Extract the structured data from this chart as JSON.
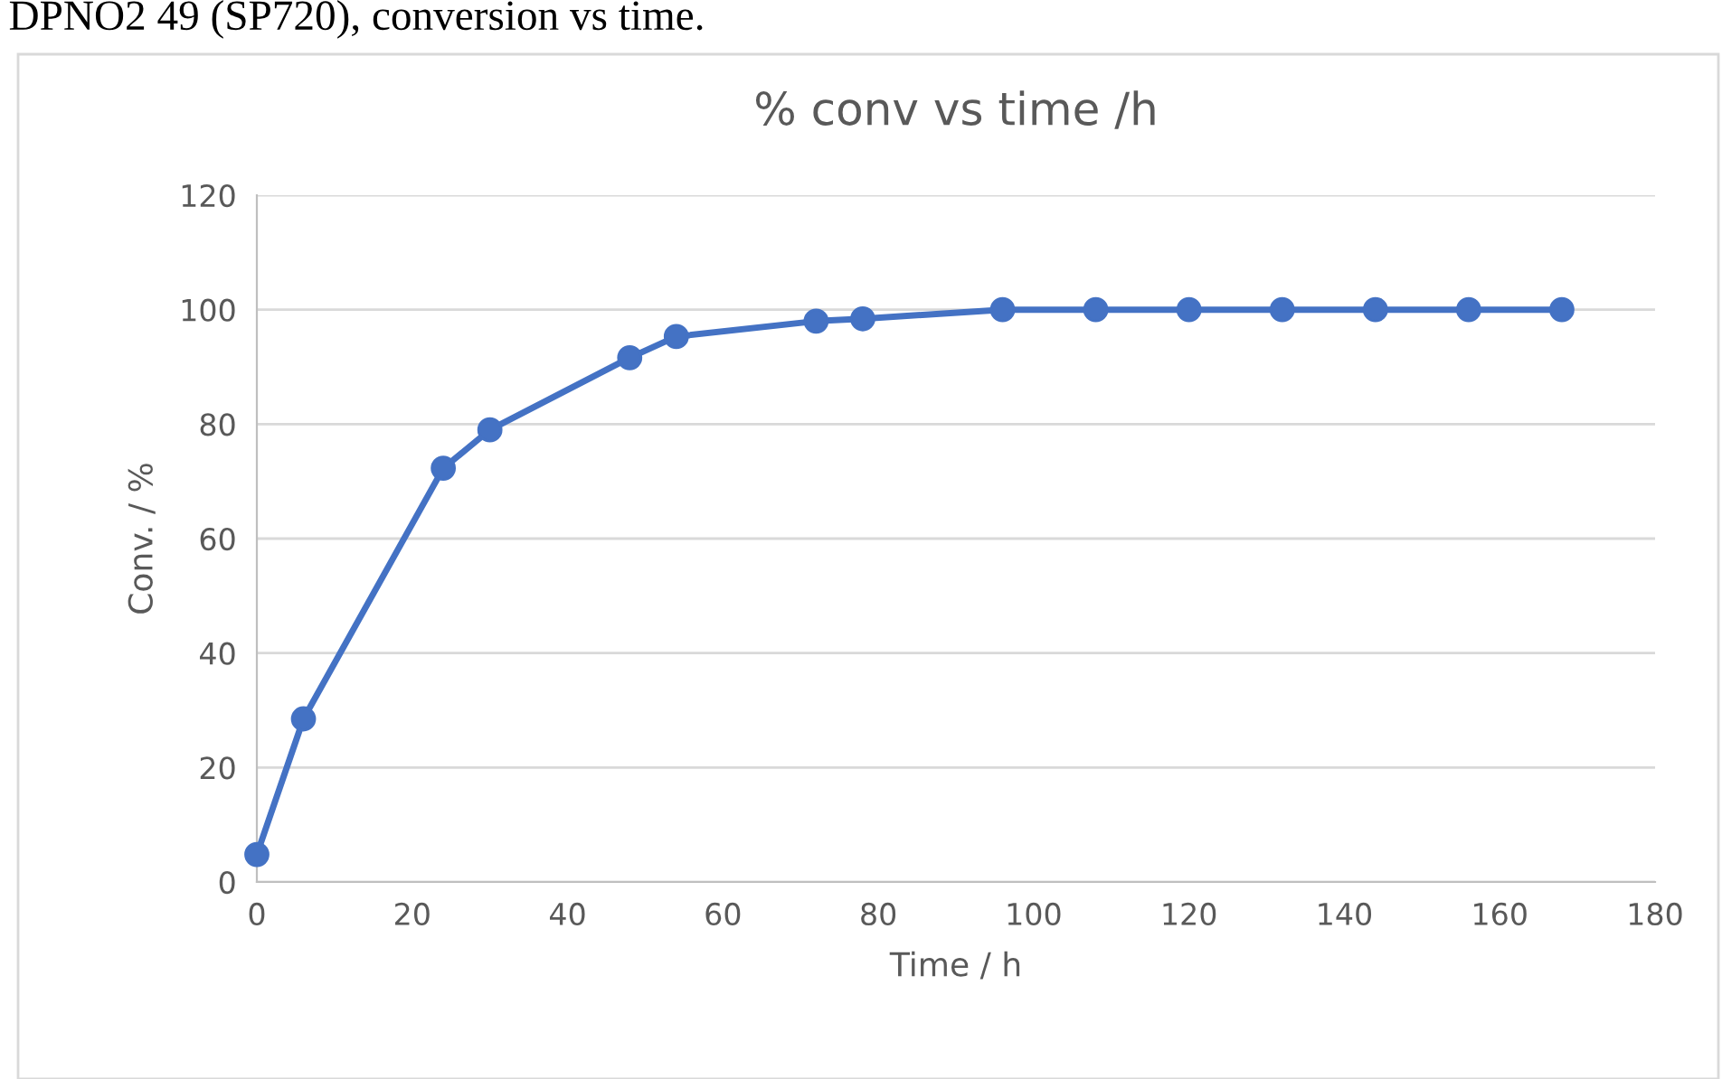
{
  "chart_data": {
    "type": "line",
    "title": "% conv vs time /h",
    "xlabel": "Time / h",
    "ylabel": "Conv. / %",
    "annotations": [
      "DPNO2 49 (SP720), conversion vs time."
    ],
    "x": [
      0,
      6,
      24,
      30,
      48,
      54,
      72,
      78,
      96,
      108,
      120,
      132,
      144,
      156,
      168
    ],
    "series": [
      {
        "color": "#4472c4",
        "values": [
          4.8,
          28.5,
          72.3,
          79.0,
          91.6,
          95.3,
          98.0,
          98.4,
          100,
          100,
          100,
          100,
          100,
          100,
          100
        ]
      }
    ],
    "xlim": [
      0,
      180
    ],
    "xticks": [
      0,
      20,
      40,
      60,
      80,
      100,
      120,
      140,
      160,
      180
    ],
    "ylim": [
      0,
      120
    ],
    "yticks": [
      0,
      20,
      40,
      60,
      80,
      100,
      120
    ],
    "grid": "y",
    "marker": "circle",
    "line_style": "solid"
  }
}
